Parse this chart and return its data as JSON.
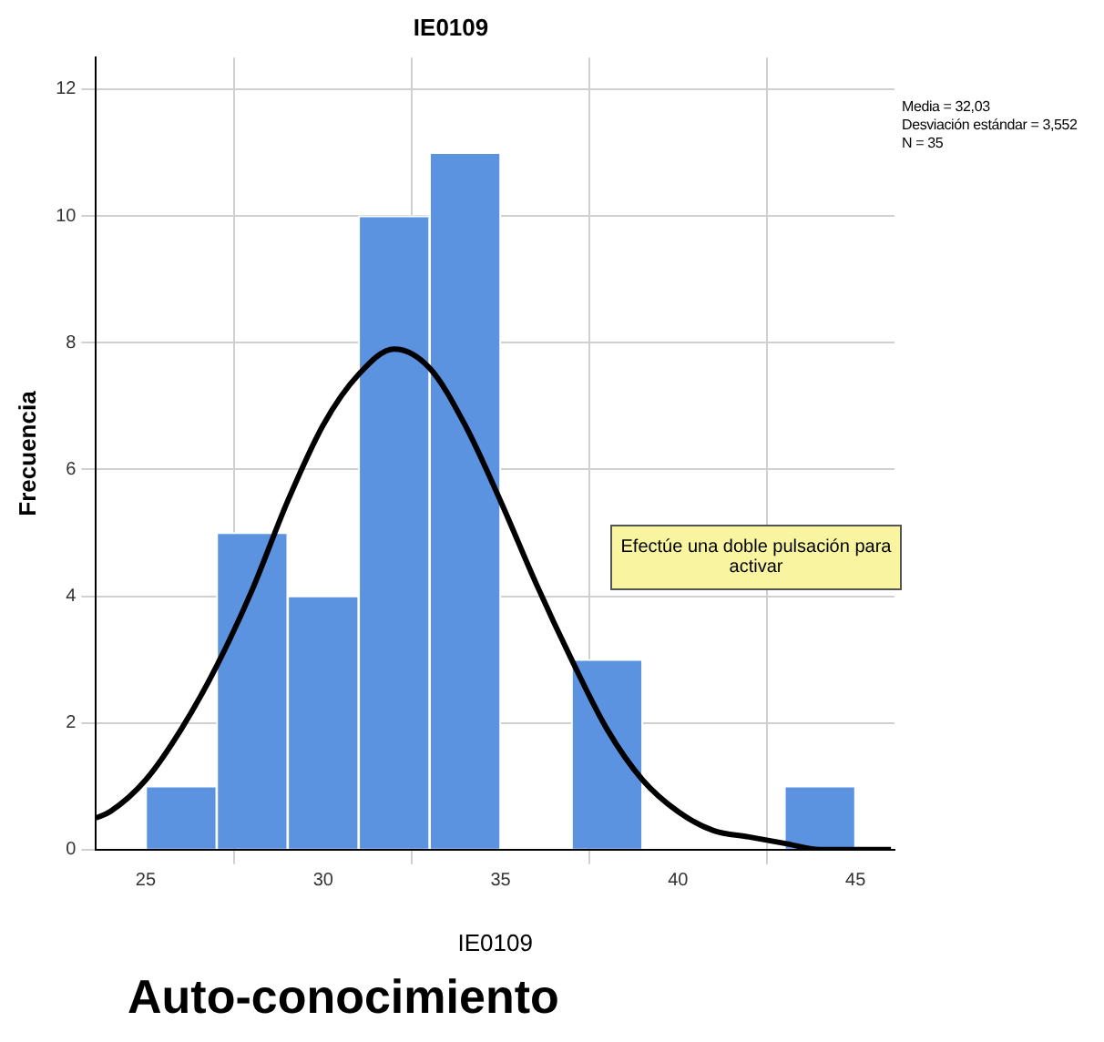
{
  "chart_data": {
    "type": "histogram",
    "title": "IE0109",
    "xlabel": "IE0109",
    "ylabel": "Frecuencia",
    "bins": [
      25,
      27,
      29,
      31,
      33,
      35,
      37,
      39,
      41,
      43,
      45
    ],
    "values": [
      1,
      5,
      4,
      10,
      11,
      0,
      3,
      0,
      0,
      1
    ],
    "color": "#5b93e0",
    "series": [
      {
        "type": "line",
        "color": "#000000",
        "x": [
          23.6,
          24,
          25,
          26,
          27,
          28,
          29,
          30,
          31,
          32,
          33,
          34,
          35,
          36,
          37,
          38,
          39,
          40,
          41,
          42,
          43,
          44,
          45,
          46
        ],
        "values": [
          0.5,
          0.6,
          1.1,
          1.9,
          2.9,
          4.1,
          5.5,
          6.7,
          7.5,
          7.9,
          7.6,
          6.7,
          5.5,
          4.2,
          3,
          1.9,
          1.1,
          0.6,
          0.3,
          0.2,
          0.1,
          0,
          0,
          0
        ]
      }
    ],
    "xlim": [
      23.6,
      46.1
    ],
    "xticks": [
      25,
      30,
      35,
      40,
      45
    ],
    "ylim": [
      0,
      12.5
    ],
    "yticks": [
      0,
      2,
      4,
      6,
      8,
      10,
      12
    ],
    "grid": true,
    "legend": false,
    "marker": "none",
    "annotations": [
      "Media = 32,03",
      "Desviación estándar = 3,552",
      "N = 35",
      "Efectúe una doble pulsación para activar",
      "Auto-conocimiento"
    ]
  }
}
